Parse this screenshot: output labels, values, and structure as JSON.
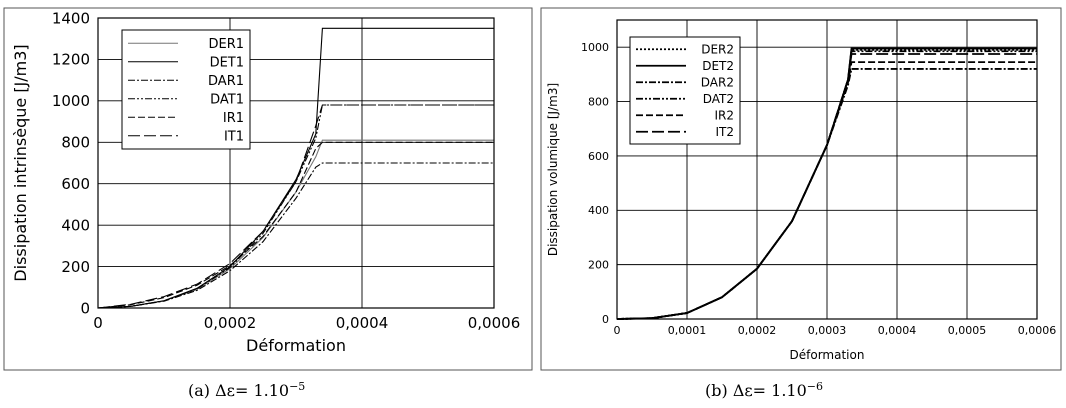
{
  "captions": {
    "a": "(a) Δε= 1.10",
    "a_exp": "−5",
    "b": "(b) Δε= 1.10",
    "b_exp": "−6"
  },
  "chart_data": [
    {
      "type": "line",
      "panel": "a",
      "xlabel": "Déformation",
      "ylabel": "Dissipation intrinsèque [J/m3]",
      "xlim": [
        0,
        0.0006
      ],
      "ylim": [
        0,
        1400
      ],
      "xticks": [
        0,
        0.0002,
        0.0004,
        0.0006
      ],
      "xtick_labels": [
        "0",
        "0,0002",
        "0,0004",
        "0,0006"
      ],
      "yticks": [
        0,
        200,
        400,
        600,
        800,
        1000,
        1200,
        1400
      ],
      "ytick_labels": [
        "0",
        "200",
        "400",
        "600",
        "800",
        "1000",
        "1200",
        "1400"
      ],
      "grid": true,
      "legend_position": "top-left",
      "series": [
        {
          "name": "DER1",
          "color": "#777777",
          "dash": "",
          "points": [
            [
              0,
              0
            ],
            [
              5e-05,
              8
            ],
            [
              0.0001,
              35
            ],
            [
              0.00015,
              90
            ],
            [
              0.0002,
              190
            ],
            [
              0.00025,
              340
            ],
            [
              0.0003,
              560
            ],
            [
              0.00033,
              730
            ],
            [
              0.00034,
              810
            ],
            [
              0.0006,
              810
            ]
          ]
        },
        {
          "name": "DET1",
          "color": "#000000",
          "dash": "",
          "points": [
            [
              0,
              0
            ],
            [
              5e-05,
              8
            ],
            [
              0.0001,
              35
            ],
            [
              0.00015,
              95
            ],
            [
              0.0002,
              200
            ],
            [
              0.00025,
              370
            ],
            [
              0.0003,
              620
            ],
            [
              0.00033,
              840
            ],
            [
              0.00034,
              1350
            ],
            [
              0.0006,
              1350
            ]
          ]
        },
        {
          "name": "DAR1",
          "color": "#000000",
          "dash": "7 2 2 2",
          "points": [
            [
              0,
              0
            ],
            [
              5e-05,
              8
            ],
            [
              0.0001,
              33
            ],
            [
              0.00015,
              85
            ],
            [
              0.0002,
              180
            ],
            [
              0.00025,
              320
            ],
            [
              0.0003,
              530
            ],
            [
              0.00033,
              680
            ],
            [
              0.00034,
              700
            ],
            [
              0.0006,
              700
            ]
          ]
        },
        {
          "name": "DAT1",
          "color": "#000000",
          "dash": "7 2 2 2 2 2",
          "points": [
            [
              0,
              0
            ],
            [
              5e-05,
              8
            ],
            [
              0.0001,
              35
            ],
            [
              0.00015,
              92
            ],
            [
              0.0002,
              195
            ],
            [
              0.00025,
              360
            ],
            [
              0.0003,
              610
            ],
            [
              0.00033,
              820
            ],
            [
              0.00034,
              980
            ],
            [
              0.0006,
              980
            ]
          ]
        },
        {
          "name": "IR1",
          "color": "#000000",
          "dash": "7 3",
          "points": [
            [
              0,
              0
            ],
            [
              5e-05,
              16
            ],
            [
              0.0001,
              50
            ],
            [
              0.00015,
              110
            ],
            [
              0.0002,
              205
            ],
            [
              0.00025,
              345
            ],
            [
              0.0003,
              560
            ],
            [
              0.00033,
              770
            ],
            [
              0.00034,
              800
            ],
            [
              0.0006,
              800
            ]
          ]
        },
        {
          "name": "IT1",
          "color": "#000000",
          "dash": "12 4",
          "points": [
            [
              0,
              0
            ],
            [
              5e-05,
              18
            ],
            [
              0.0001,
              55
            ],
            [
              0.00015,
              115
            ],
            [
              0.0002,
              215
            ],
            [
              0.00025,
              370
            ],
            [
              0.0003,
              610
            ],
            [
              0.00033,
              880
            ],
            [
              0.00034,
              980
            ],
            [
              0.0006,
              980
            ]
          ]
        }
      ]
    },
    {
      "type": "line",
      "panel": "b",
      "xlabel": "Déformation",
      "ylabel": "Dissipation volumique [J/m3]",
      "xlim": [
        0,
        0.0006
      ],
      "ylim": [
        0,
        1100
      ],
      "xticks": [
        0,
        0.0001,
        0.0002,
        0.0003,
        0.0004,
        0.0005,
        0.0006
      ],
      "xtick_labels": [
        "0",
        "0,0001",
        "0,0002",
        "0,0003",
        "0,0004",
        "0,0005",
        "0,0006"
      ],
      "yticks": [
        0,
        200,
        400,
        600,
        800,
        1000
      ],
      "ytick_labels": [
        "0",
        "200",
        "400",
        "600",
        "800",
        "1000"
      ],
      "grid": true,
      "legend_position": "top-left",
      "series": [
        {
          "name": "DER2",
          "color": "#000000",
          "dash": "2 2",
          "points": [
            [
              0,
              0
            ],
            [
              5e-05,
              3
            ],
            [
              0.0001,
              22
            ],
            [
              0.00015,
              80
            ],
            [
              0.0002,
              185
            ],
            [
              0.00025,
              360
            ],
            [
              0.0003,
              640
            ],
            [
              0.00033,
              880
            ],
            [
              0.000335,
              990
            ],
            [
              0.0006,
              990
            ]
          ]
        },
        {
          "name": "DET2",
          "color": "#000000",
          "dash": "",
          "points": [
            [
              0,
              0
            ],
            [
              5e-05,
              3
            ],
            [
              0.0001,
              22
            ],
            [
              0.00015,
              80
            ],
            [
              0.0002,
              185
            ],
            [
              0.00025,
              360
            ],
            [
              0.0003,
              640
            ],
            [
              0.00033,
              880
            ],
            [
              0.000335,
              995
            ],
            [
              0.0006,
              995
            ]
          ]
        },
        {
          "name": "DAR2",
          "color": "#000000",
          "dash": "7 2 2 2",
          "points": [
            [
              0,
              0
            ],
            [
              5e-05,
              3
            ],
            [
              0.0001,
              22
            ],
            [
              0.00015,
              80
            ],
            [
              0.0002,
              185
            ],
            [
              0.00025,
              360
            ],
            [
              0.0003,
              640
            ],
            [
              0.00033,
              860
            ],
            [
              0.000335,
              920
            ],
            [
              0.0006,
              920
            ]
          ]
        },
        {
          "name": "DAT2",
          "color": "#000000",
          "dash": "7 2 2 2 2 2",
          "points": [
            [
              0,
              0
            ],
            [
              5e-05,
              3
            ],
            [
              0.0001,
              22
            ],
            [
              0.00015,
              80
            ],
            [
              0.0002,
              185
            ],
            [
              0.00025,
              360
            ],
            [
              0.0003,
              640
            ],
            [
              0.00033,
              880
            ],
            [
              0.000335,
              985
            ],
            [
              0.0006,
              985
            ]
          ]
        },
        {
          "name": "IR2",
          "color": "#000000",
          "dash": "7 3",
          "points": [
            [
              0,
              0
            ],
            [
              5e-05,
              3
            ],
            [
              0.0001,
              22
            ],
            [
              0.00015,
              80
            ],
            [
              0.0002,
              185
            ],
            [
              0.00025,
              360
            ],
            [
              0.0003,
              640
            ],
            [
              0.00033,
              870
            ],
            [
              0.000335,
              945
            ],
            [
              0.0006,
              945
            ]
          ]
        },
        {
          "name": "IT2",
          "color": "#000000",
          "dash": "12 4",
          "points": [
            [
              0,
              0
            ],
            [
              5e-05,
              3
            ],
            [
              0.0001,
              22
            ],
            [
              0.00015,
              80
            ],
            [
              0.0002,
              185
            ],
            [
              0.00025,
              360
            ],
            [
              0.0003,
              640
            ],
            [
              0.00033,
              880
            ],
            [
              0.000335,
              975
            ],
            [
              0.0006,
              975
            ]
          ]
        }
      ]
    }
  ]
}
